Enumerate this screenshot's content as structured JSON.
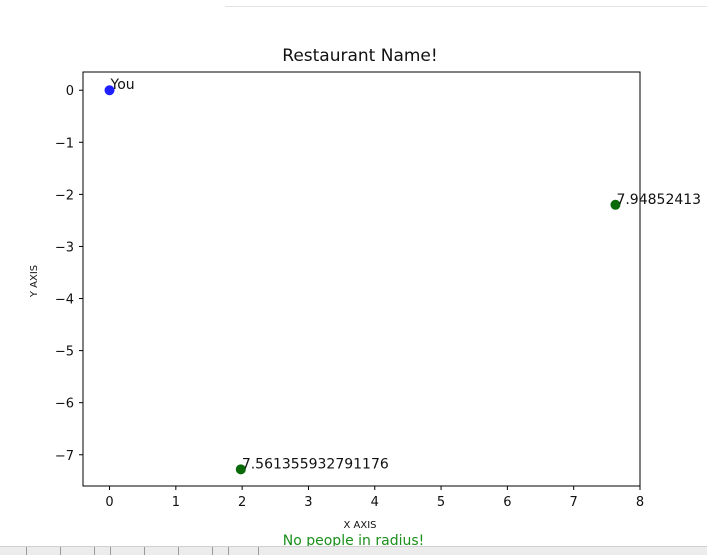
{
  "chart_data": {
    "type": "scatter",
    "title": "Restaurant Name!",
    "xlabel": "X AXIS",
    "ylabel": "Y AXIS",
    "xlim": [
      -0.4,
      8.0
    ],
    "ylim": [
      -7.6,
      0.35
    ],
    "xticks": [
      "0",
      "1",
      "2",
      "3",
      "4",
      "5",
      "6",
      "7",
      "8"
    ],
    "yticks": [
      "0",
      "−1",
      "−2",
      "−3",
      "−4",
      "−5",
      "−6",
      "−7"
    ],
    "grid": false,
    "points": [
      {
        "x": 0.0,
        "y": 0.0,
        "label": "You",
        "color": "#1f1fff"
      },
      {
        "x": 7.63,
        "y": -2.2,
        "label": "7.94852413",
        "color": "#0a6a0a"
      },
      {
        "x": 1.98,
        "y": -7.28,
        "label": "7.561355932791176",
        "color": "#0a6a0a"
      }
    ]
  },
  "status_message": "No people in radius!"
}
